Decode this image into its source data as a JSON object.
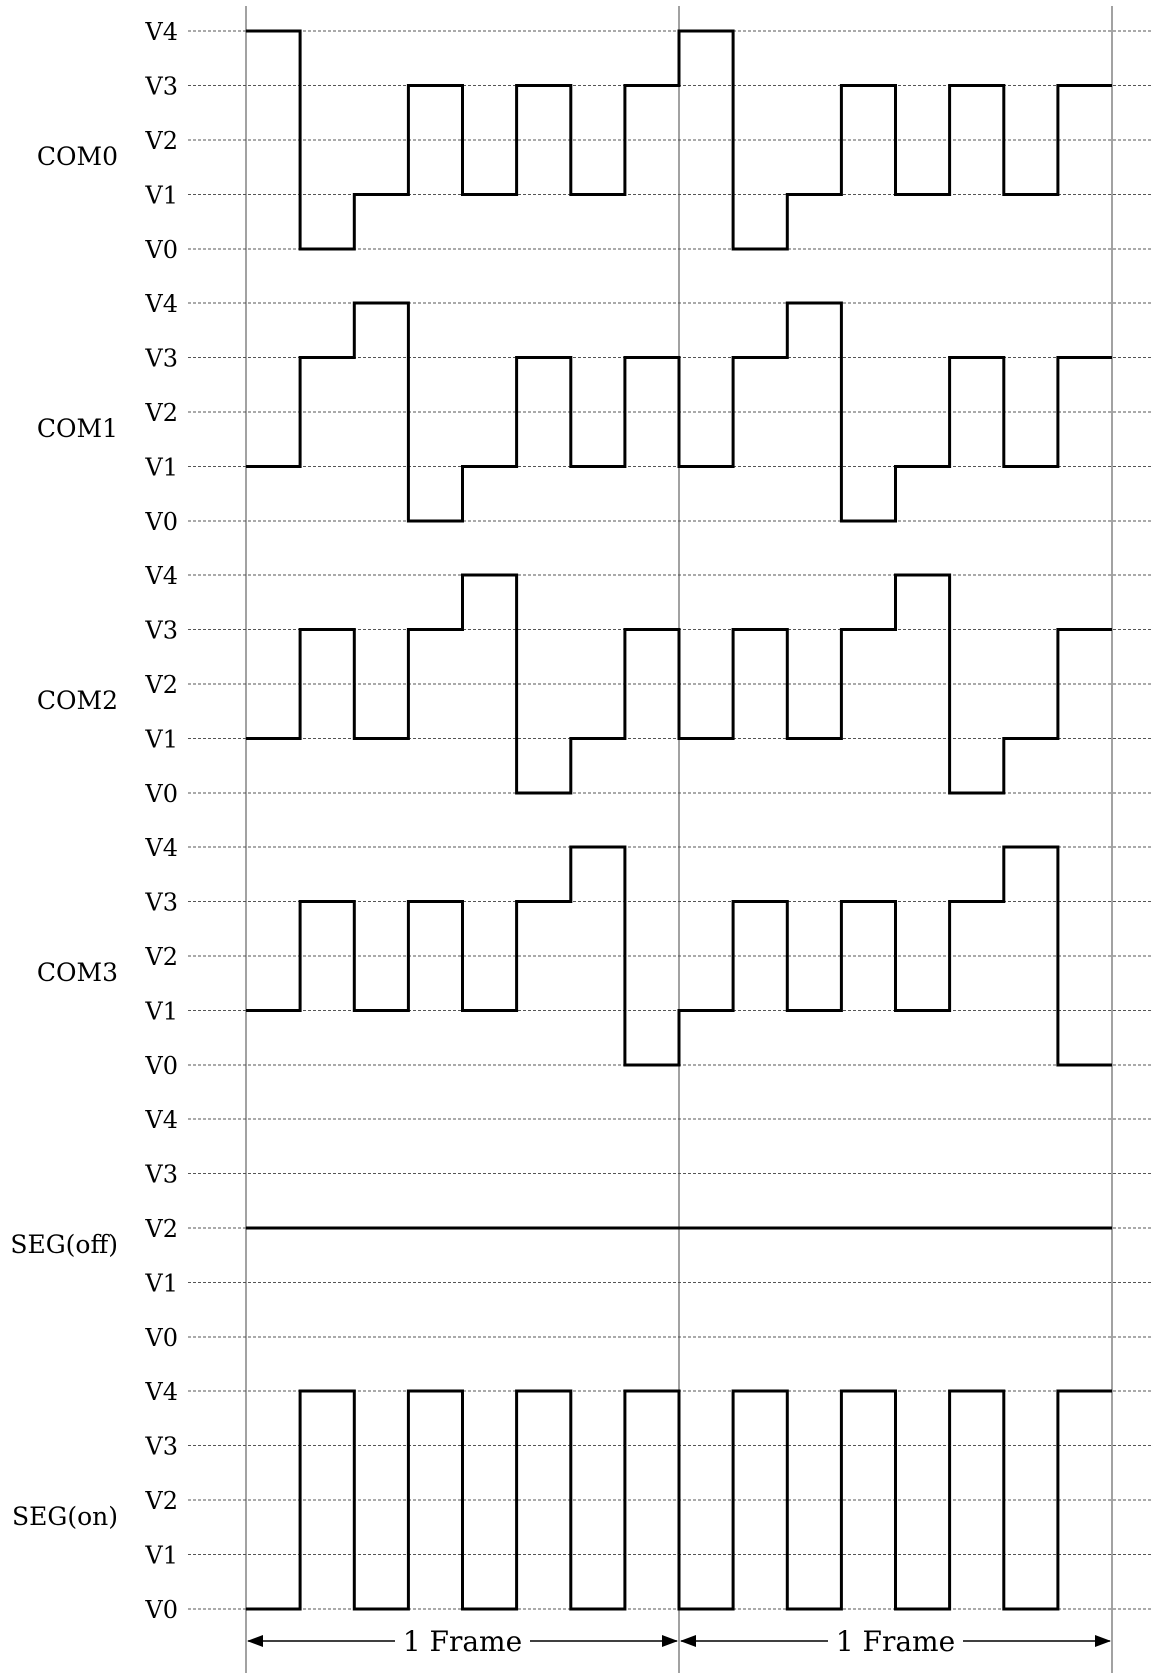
{
  "chart_data": {
    "type": "timing-diagram",
    "levels": [
      "V0",
      "V1",
      "V2",
      "V3",
      "V4"
    ],
    "slots_per_frame": 8,
    "frames": 2,
    "frame_label": "1 Frame",
    "signals": [
      {
        "name": "COM0",
        "values": [
          4,
          0,
          1,
          3,
          1,
          3,
          1,
          3,
          4,
          0,
          1,
          3,
          1,
          3,
          1,
          3
        ]
      },
      {
        "name": "COM1",
        "values": [
          1,
          3,
          4,
          0,
          1,
          3,
          1,
          3,
          1,
          3,
          4,
          0,
          1,
          3,
          1,
          3
        ]
      },
      {
        "name": "COM2",
        "values": [
          1,
          3,
          1,
          3,
          4,
          0,
          1,
          3,
          1,
          3,
          1,
          3,
          4,
          0,
          1,
          3
        ]
      },
      {
        "name": "COM3",
        "values": [
          1,
          3,
          1,
          3,
          1,
          3,
          4,
          0,
          1,
          3,
          1,
          3,
          1,
          3,
          4,
          0
        ]
      },
      {
        "name": "SEG(off)",
        "values": [
          2,
          2,
          2,
          2,
          2,
          2,
          2,
          2,
          2,
          2,
          2,
          2,
          2,
          2,
          2,
          2
        ]
      },
      {
        "name": "SEG(on)",
        "values": [
          0,
          4,
          0,
          4,
          0,
          4,
          0,
          4,
          0,
          4,
          0,
          4,
          0,
          4,
          0,
          4
        ]
      }
    ]
  }
}
